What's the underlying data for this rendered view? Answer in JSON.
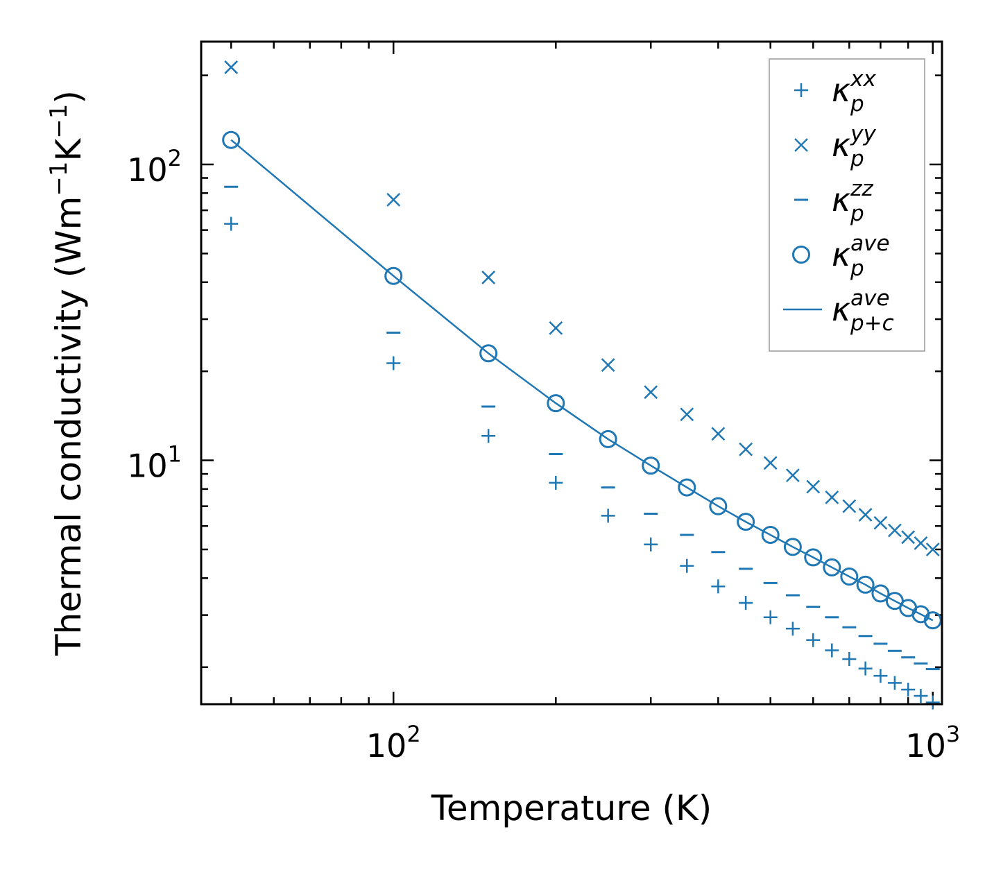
{
  "chart_data": {
    "type": "scatter",
    "x_scale": "log",
    "y_scale": "log",
    "xlabel": "Temperature (K)",
    "ylabel": {
      "prefix": "Thermal conductivity (Wm",
      "exp1": "−1",
      "mid": "K",
      "exp2": "−1",
      "suffix": ")"
    },
    "xlim": [
      44,
      1040
    ],
    "ylim": [
      1.5,
      260
    ],
    "x_ticks": [
      {
        "value": 100,
        "base": "10",
        "exp": "2"
      },
      {
        "value": 1000,
        "base": "10",
        "exp": "3"
      }
    ],
    "y_ticks": [
      {
        "value": 10,
        "base": "10",
        "exp": "1"
      },
      {
        "value": 100,
        "base": "10",
        "exp": "2"
      }
    ],
    "x": [
      50,
      100,
      150,
      200,
      250,
      300,
      350,
      400,
      450,
      500,
      550,
      600,
      650,
      700,
      750,
      800,
      850,
      900,
      950,
      1000
    ],
    "series": [
      {
        "name": "kappa_p_xx",
        "label": {
          "base": "κ",
          "sub": "p",
          "sup": "xx"
        },
        "marker": "plus",
        "values": [
          63,
          21.3,
          12.1,
          8.4,
          6.5,
          5.2,
          4.4,
          3.75,
          3.3,
          2.95,
          2.7,
          2.47,
          2.28,
          2.13,
          1.98,
          1.87,
          1.77,
          1.68,
          1.6,
          1.52
        ]
      },
      {
        "name": "kappa_p_yy",
        "label": {
          "base": "κ",
          "sub": "p",
          "sup": "yy"
        },
        "marker": "x",
        "values": [
          213,
          76,
          41.5,
          28,
          21,
          17,
          14.3,
          12.3,
          10.9,
          9.8,
          8.9,
          8.15,
          7.5,
          7.0,
          6.55,
          6.15,
          5.8,
          5.5,
          5.25,
          5.0
        ]
      },
      {
        "name": "kappa_p_zz",
        "label": {
          "base": "κ",
          "sub": "p",
          "sup": "zz"
        },
        "marker": "dash",
        "values": [
          84,
          27,
          15.2,
          10.5,
          8.1,
          6.6,
          5.6,
          4.9,
          4.3,
          3.85,
          3.5,
          3.2,
          2.95,
          2.73,
          2.55,
          2.4,
          2.27,
          2.16,
          2.06,
          1.97
        ]
      },
      {
        "name": "kappa_p_ave",
        "label": {
          "base": "κ",
          "sub": "p",
          "sup": "ave"
        },
        "marker": "circle",
        "values": [
          121,
          42,
          23,
          15.6,
          11.8,
          9.6,
          8.1,
          7.0,
          6.2,
          5.6,
          5.1,
          4.7,
          4.35,
          4.05,
          3.8,
          3.55,
          3.35,
          3.17,
          3.02,
          2.88
        ]
      },
      {
        "name": "kappa_p_plus_c_ave",
        "label": {
          "base": "κ",
          "sub": "p+c",
          "sup": "ave"
        },
        "marker": "line",
        "values": [
          121,
          42,
          23,
          15.6,
          11.8,
          9.6,
          8.1,
          7.0,
          6.2,
          5.6,
          5.1,
          4.7,
          4.35,
          4.05,
          3.8,
          3.55,
          3.35,
          3.17,
          3.02,
          2.88
        ]
      }
    ],
    "legend_position": "top-right",
    "color": "#1f77b4"
  }
}
